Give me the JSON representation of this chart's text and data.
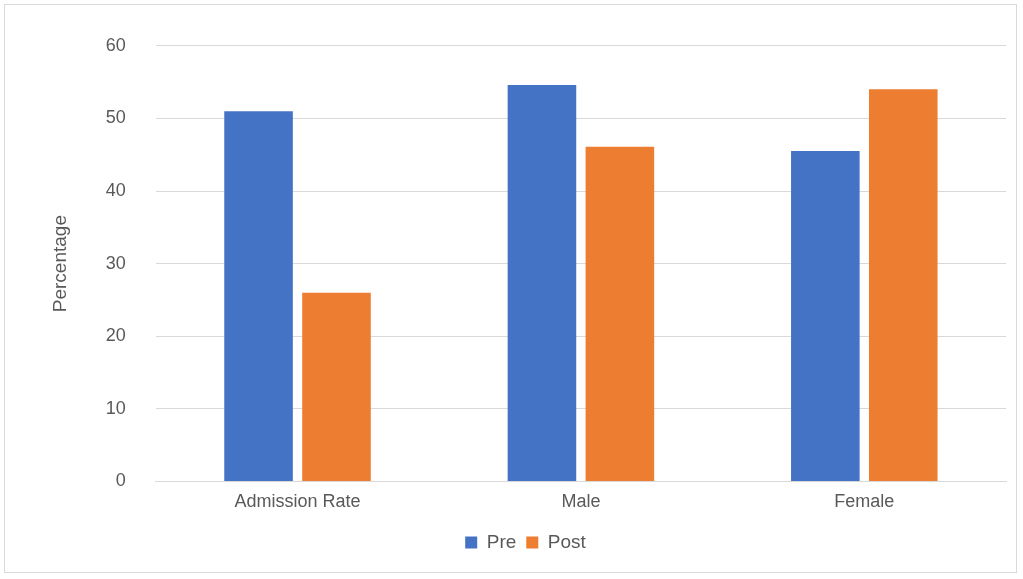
{
  "chart_data": {
    "type": "bar",
    "ylabel": "Percentage",
    "categories": [
      "Admission Rate",
      "Male",
      "Female"
    ],
    "series": [
      {
        "name": "Pre",
        "color": "#4472c4",
        "values": [
          51,
          54.6,
          45.5
        ]
      },
      {
        "name": "Post",
        "color": "#ed7d31",
        "values": [
          26,
          46.1,
          54
        ]
      }
    ],
    "ylim": [
      0,
      60
    ],
    "yticks": [
      0,
      10,
      20,
      30,
      40,
      50,
      60
    ],
    "grid": "y",
    "legend": "bottom"
  }
}
